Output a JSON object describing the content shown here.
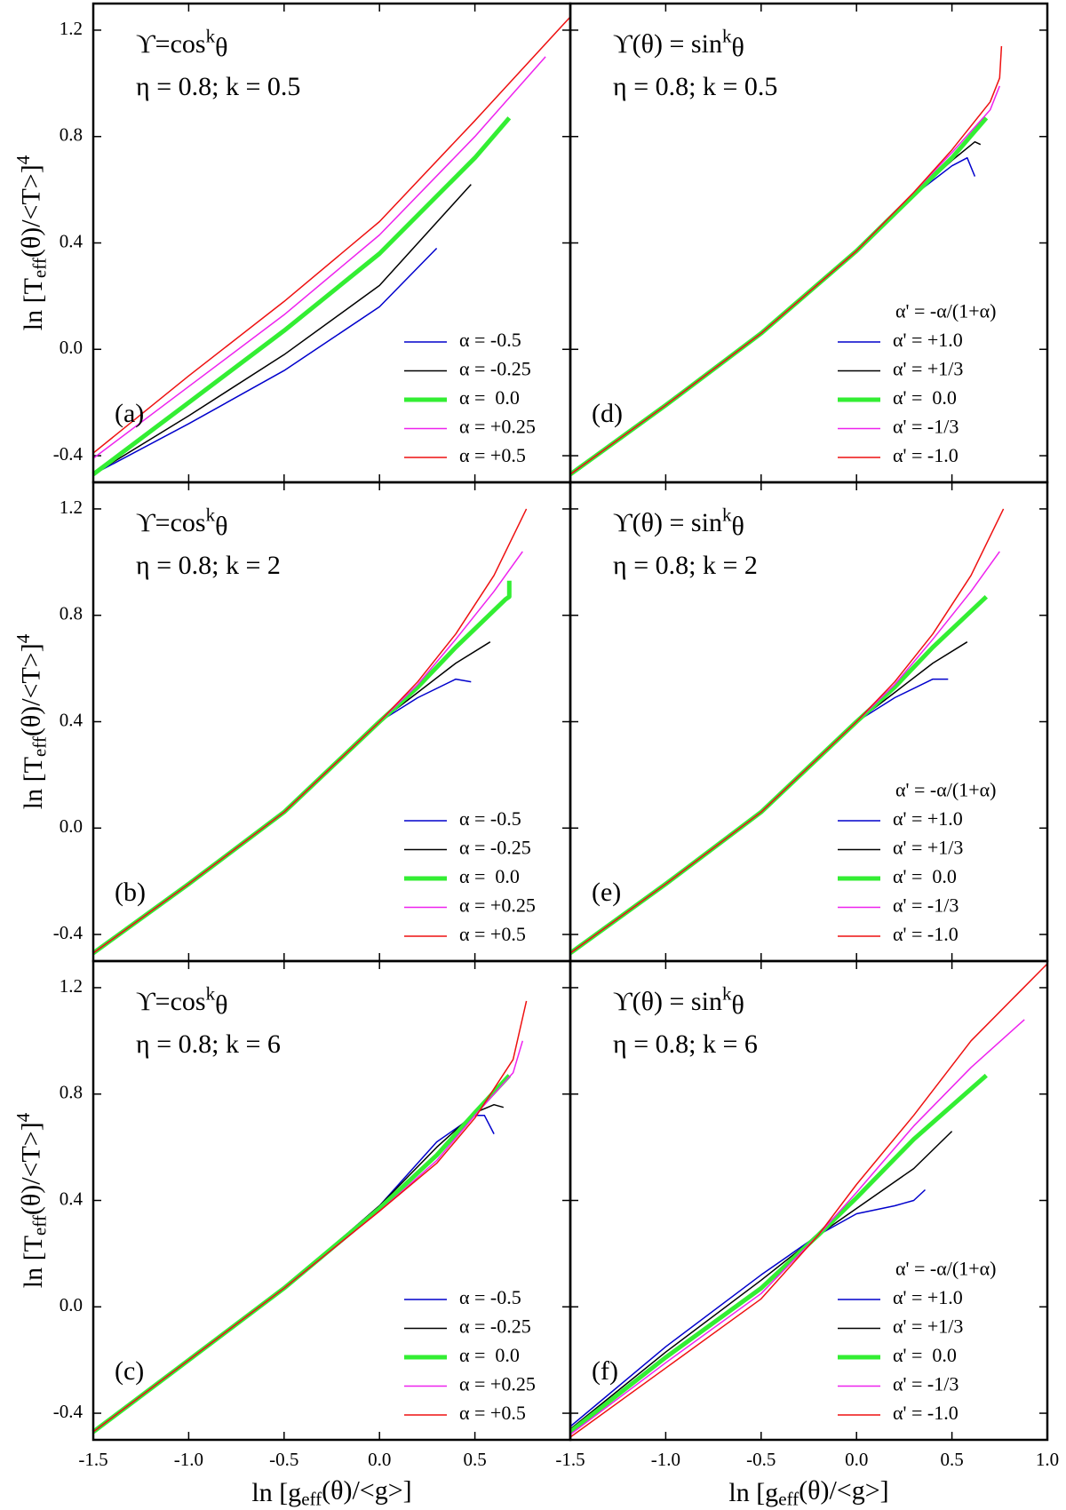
{
  "chart_data": [
    {
      "type": "line",
      "title": {
        "pre": "ϒ=cos",
        "sup": "k",
        "post": "θ"
      },
      "subtitle": "η = 0.8; k = 0.5",
      "annotation": "(a)",
      "ylabel": {
        "pre": "ln [T",
        "sub": "eff",
        "mid": "(θ)/<T>]",
        "sup": "4"
      },
      "xlim": [
        -1.5,
        1.0
      ],
      "ylim": [
        -0.5,
        1.3
      ],
      "xticks": [
        -1.5,
        -1,
        -0.5,
        0,
        0.5,
        1
      ],
      "yticks": [
        -0.4,
        {
          "value": 0,
          "label": "0.0"
        },
        0.4,
        0.8,
        1.2
      ],
      "series": [
        {
          "name": "α = -0.5",
          "color": "#0000cc",
          "linewidth": 1.5,
          "x": [
            -1.5,
            -1,
            -0.5,
            0,
            0.3
          ],
          "values": [
            -0.47,
            -0.28,
            -0.08,
            0.16,
            0.38
          ]
        },
        {
          "name": "α = -0.25",
          "color": "#000000",
          "linewidth": 1.5,
          "x": [
            -1.5,
            -1,
            -0.5,
            0,
            0.48
          ],
          "values": [
            -0.47,
            -0.25,
            -0.02,
            0.24,
            0.62
          ]
        },
        {
          "name": "α =  0.0",
          "color": "#33ee33",
          "linewidth": 5,
          "x": [
            -1.5,
            -1,
            -0.5,
            0,
            0.5,
            0.68
          ],
          "values": [
            -0.47,
            -0.2,
            0.07,
            0.36,
            0.72,
            0.87
          ]
        },
        {
          "name": "α = +0.25",
          "color": "#ee22ee",
          "linewidth": 1.5,
          "x": [
            -1.5,
            -1,
            -0.5,
            0,
            0.5,
            0.87
          ],
          "values": [
            -0.41,
            -0.14,
            0.13,
            0.43,
            0.8,
            1.1
          ]
        },
        {
          "name": "α = +0.5",
          "color": "#ee1111",
          "linewidth": 1.5,
          "x": [
            -1.5,
            -1,
            -0.5,
            0,
            0.5,
            1.0
          ],
          "values": [
            -0.39,
            -0.1,
            0.18,
            0.48,
            0.86,
            1.25
          ]
        }
      ]
    },
    {
      "type": "line",
      "title": {
        "pre": "ϒ(θ) = sin",
        "sup": "k",
        "post": "θ"
      },
      "subtitle": "η = 0.8; k = 0.5",
      "annotation": "(d)",
      "legend_title": "α' = -α/(1+α)",
      "xlim": [
        -1.5,
        1.0
      ],
      "ylim": [
        -0.5,
        1.3
      ],
      "xticks": [
        -1.5,
        -1,
        -0.5,
        0,
        0.5,
        1
      ],
      "yticks": [
        -0.4,
        0,
        0.4,
        0.8,
        1.2
      ],
      "series": [
        {
          "name": "α' = +1.0",
          "color": "#0000cc",
          "linewidth": 1.5,
          "x": [
            -1.5,
            -1,
            -0.5,
            0,
            0.3,
            0.5,
            0.58,
            0.62
          ],
          "values": [
            -0.47,
            -0.21,
            0.06,
            0.37,
            0.58,
            0.69,
            0.72,
            0.65
          ]
        },
        {
          "name": "α' = +1/3",
          "color": "#000000",
          "linewidth": 1.5,
          "x": [
            -1.5,
            -1,
            -0.5,
            0,
            0.3,
            0.5,
            0.62,
            0.65
          ],
          "values": [
            -0.47,
            -0.21,
            0.06,
            0.37,
            0.58,
            0.71,
            0.78,
            0.77
          ]
        },
        {
          "name": "α' =  0.0",
          "color": "#33ee33",
          "linewidth": 5,
          "x": [
            -1.5,
            -1,
            -0.5,
            0,
            0.3,
            0.5,
            0.68
          ],
          "values": [
            -0.47,
            -0.21,
            0.06,
            0.37,
            0.58,
            0.72,
            0.87
          ]
        },
        {
          "name": "α' = -1/3",
          "color": "#ee22ee",
          "linewidth": 1.5,
          "x": [
            -1.5,
            -1,
            -0.5,
            0,
            0.3,
            0.5,
            0.7,
            0.75
          ],
          "values": [
            -0.47,
            -0.21,
            0.06,
            0.37,
            0.59,
            0.74,
            0.9,
            0.99
          ]
        },
        {
          "name": "α' = -1.0",
          "color": "#ee1111",
          "linewidth": 1.5,
          "x": [
            -1.5,
            -1,
            -0.5,
            0,
            0.3,
            0.5,
            0.7,
            0.75,
            0.76
          ],
          "values": [
            -0.47,
            -0.21,
            0.06,
            0.37,
            0.59,
            0.75,
            0.93,
            1.02,
            1.14
          ]
        }
      ]
    },
    {
      "type": "line",
      "title": {
        "pre": "ϒ=cos",
        "sup": "k",
        "post": "θ"
      },
      "subtitle": "η = 0.8; k = 2",
      "annotation": "(b)",
      "ylabel": {
        "pre": "ln [T",
        "sub": "eff",
        "mid": "(θ)/<T>]",
        "sup": "4"
      },
      "xlim": [
        -1.5,
        1.0
      ],
      "ylim": [
        -0.5,
        1.3
      ],
      "xticks": [
        -1.5,
        -1,
        -0.5,
        0,
        0.5,
        1
      ],
      "yticks": [
        -0.4,
        {
          "value": 0,
          "label": "0.0"
        },
        0.4,
        0.8,
        1.2
      ],
      "series": [
        {
          "name": "α = -0.5",
          "color": "#0000cc",
          "linewidth": 1.5,
          "x": [
            -1.5,
            -1,
            -0.5,
            0,
            0.2,
            0.4,
            0.48
          ],
          "values": [
            -0.47,
            -0.21,
            0.06,
            0.4,
            0.49,
            0.56,
            0.55
          ]
        },
        {
          "name": "α = -0.25",
          "color": "#000000",
          "linewidth": 1.5,
          "x": [
            -1.5,
            -1,
            -0.5,
            0,
            0.2,
            0.4,
            0.58
          ],
          "values": [
            -0.47,
            -0.21,
            0.06,
            0.4,
            0.51,
            0.62,
            0.7
          ]
        },
        {
          "name": "α =  0.0",
          "color": "#33ee33",
          "linewidth": 5,
          "x": [
            -1.5,
            -1,
            -0.5,
            0,
            0.2,
            0.4,
            0.66,
            0.68,
            0.68
          ],
          "values": [
            -0.47,
            -0.21,
            0.06,
            0.4,
            0.53,
            0.68,
            0.86,
            0.87,
            0.93
          ]
        },
        {
          "name": "α = +0.25",
          "color": "#ee22ee",
          "linewidth": 1.5,
          "x": [
            -1.5,
            -1,
            -0.5,
            0,
            0.2,
            0.4,
            0.6,
            0.75
          ],
          "values": [
            -0.47,
            -0.21,
            0.06,
            0.4,
            0.54,
            0.71,
            0.89,
            1.04
          ]
        },
        {
          "name": "α = +0.5",
          "color": "#ee1111",
          "linewidth": 1.5,
          "x": [
            -1.5,
            -1,
            -0.5,
            0,
            0.2,
            0.4,
            0.6,
            0.77
          ],
          "values": [
            -0.47,
            -0.21,
            0.06,
            0.4,
            0.55,
            0.73,
            0.95,
            1.2
          ]
        }
      ]
    },
    {
      "type": "line",
      "title": {
        "pre": "ϒ(θ) = sin",
        "sup": "k",
        "post": "θ"
      },
      "subtitle": "η = 0.8; k = 2",
      "annotation": "(e)",
      "legend_title": "α' = -α/(1+α)",
      "xlim": [
        -1.5,
        1.0
      ],
      "ylim": [
        -0.5,
        1.3
      ],
      "xticks": [
        -1.5,
        -1,
        -0.5,
        0,
        0.5,
        1
      ],
      "yticks": [
        -0.4,
        0,
        0.4,
        0.8,
        1.2
      ],
      "series": [
        {
          "name": "α' = +1.0",
          "color": "#0000cc",
          "linewidth": 1.5,
          "x": [
            -1.5,
            -1,
            -0.5,
            0,
            0.2,
            0.4,
            0.48
          ],
          "values": [
            -0.47,
            -0.21,
            0.06,
            0.4,
            0.49,
            0.56,
            0.56
          ]
        },
        {
          "name": "α' = +1/3",
          "color": "#000000",
          "linewidth": 1.5,
          "x": [
            -1.5,
            -1,
            -0.5,
            0,
            0.2,
            0.4,
            0.58
          ],
          "values": [
            -0.47,
            -0.21,
            0.06,
            0.4,
            0.51,
            0.62,
            0.7
          ]
        },
        {
          "name": "α' =  0.0",
          "color": "#33ee33",
          "linewidth": 5,
          "x": [
            -1.5,
            -1,
            -0.5,
            0,
            0.2,
            0.4,
            0.68
          ],
          "values": [
            -0.47,
            -0.21,
            0.06,
            0.4,
            0.53,
            0.68,
            0.87
          ]
        },
        {
          "name": "α' = -1/3",
          "color": "#ee22ee",
          "linewidth": 1.5,
          "x": [
            -1.5,
            -1,
            -0.5,
            0,
            0.2,
            0.4,
            0.6,
            0.75
          ],
          "values": [
            -0.47,
            -0.21,
            0.06,
            0.4,
            0.54,
            0.71,
            0.89,
            1.04
          ]
        },
        {
          "name": "α' = -1.0",
          "color": "#ee1111",
          "linewidth": 1.5,
          "x": [
            -1.5,
            -1,
            -0.5,
            0,
            0.2,
            0.4,
            0.6,
            0.77
          ],
          "values": [
            -0.47,
            -0.21,
            0.06,
            0.4,
            0.55,
            0.73,
            0.95,
            1.2
          ]
        }
      ]
    },
    {
      "type": "line",
      "title": {
        "pre": "ϒ=cos",
        "sup": "k",
        "post": "θ"
      },
      "subtitle": "η = 0.8; k = 6",
      "annotation": "(c)",
      "ylabel": {
        "pre": "ln [T",
        "sub": "eff",
        "mid": "(θ)/<T>]",
        "sup": "4"
      },
      "xlabel": {
        "pre": "ln [g",
        "sub": "eff",
        "mid": "(θ)/<g>]"
      },
      "xlim": [
        -1.5,
        1.0
      ],
      "ylim": [
        -0.5,
        1.3
      ],
      "xticks": [
        -1.5,
        {
          "value": -1,
          "label": "-1.0"
        },
        -0.5,
        {
          "value": 0,
          "label": "0.0"
        },
        0.5
      ],
      "yticks": [
        -0.4,
        {
          "value": 0,
          "label": "0.0"
        },
        0.4,
        0.8,
        1.2
      ],
      "series": [
        {
          "name": "α = -0.5",
          "color": "#0000cc",
          "linewidth": 1.5,
          "x": [
            -1.5,
            -1,
            -0.5,
            0,
            0.3,
            0.5,
            0.55,
            0.6
          ],
          "values": [
            -0.47,
            -0.2,
            0.07,
            0.38,
            0.62,
            0.72,
            0.72,
            0.65
          ]
        },
        {
          "name": "α = -0.25",
          "color": "#000000",
          "linewidth": 1.5,
          "x": [
            -1.5,
            -1,
            -0.5,
            0,
            0.3,
            0.5,
            0.6,
            0.65
          ],
          "values": [
            -0.47,
            -0.2,
            0.07,
            0.38,
            0.6,
            0.73,
            0.76,
            0.75
          ]
        },
        {
          "name": "α =  0.0",
          "color": "#33ee33",
          "linewidth": 5,
          "x": [
            -1.5,
            -1,
            -0.5,
            0,
            0.3,
            0.5,
            0.68
          ],
          "values": [
            -0.47,
            -0.2,
            0.07,
            0.37,
            0.57,
            0.73,
            0.87
          ]
        },
        {
          "name": "α = +0.25",
          "color": "#ee22ee",
          "linewidth": 1.5,
          "x": [
            -1.5,
            -1,
            -0.5,
            0,
            0.3,
            0.5,
            0.7,
            0.75
          ],
          "values": [
            -0.47,
            -0.2,
            0.07,
            0.36,
            0.55,
            0.72,
            0.88,
            1.0
          ]
        },
        {
          "name": "α = +0.5",
          "color": "#ee1111",
          "linewidth": 1.5,
          "x": [
            -1.5,
            -1,
            -0.5,
            0,
            0.3,
            0.5,
            0.7,
            0.77
          ],
          "values": [
            -0.47,
            -0.2,
            0.07,
            0.36,
            0.54,
            0.71,
            0.93,
            1.15
          ]
        }
      ]
    },
    {
      "type": "line",
      "title": {
        "pre": "ϒ(θ) = sin",
        "sup": "k",
        "post": "θ"
      },
      "subtitle": "η = 0.8; k = 6",
      "annotation": "(f)",
      "legend_title": "α' = -α/(1+α)",
      "xlabel": {
        "pre": "ln [g",
        "sub": "eff",
        "mid": "(θ)/<g>]"
      },
      "xlim": [
        -1.5,
        1.0
      ],
      "ylim": [
        -0.5,
        1.3
      ],
      "xticks": [
        -1.5,
        {
          "value": -1,
          "label": "-1.0"
        },
        -0.5,
        {
          "value": 0,
          "label": "0.0"
        },
        0.5,
        {
          "value": 1,
          "label": "1.0"
        }
      ],
      "yticks": [
        -0.4,
        0,
        0.4,
        0.8,
        1.2
      ],
      "series": [
        {
          "name": "α' = +1.0",
          "color": "#0000cc",
          "linewidth": 1.5,
          "x": [
            -1.5,
            -1,
            -0.5,
            -0.2,
            0,
            0.2,
            0.3,
            0.36
          ],
          "values": [
            -0.45,
            -0.15,
            0.12,
            0.27,
            0.35,
            0.38,
            0.4,
            0.44
          ]
        },
        {
          "name": "α' = +1/3",
          "color": "#000000",
          "linewidth": 1.5,
          "x": [
            -1.5,
            -1,
            -0.5,
            -0.2,
            0,
            0.3,
            0.5
          ],
          "values": [
            -0.46,
            -0.17,
            0.1,
            0.27,
            0.37,
            0.52,
            0.66
          ]
        },
        {
          "name": "α' =  0.0",
          "color": "#33ee33",
          "linewidth": 5,
          "x": [
            -1.5,
            -1,
            -0.5,
            -0.2,
            0,
            0.3,
            0.68
          ],
          "values": [
            -0.47,
            -0.19,
            0.07,
            0.27,
            0.41,
            0.63,
            0.87
          ]
        },
        {
          "name": "α' = -1/3",
          "color": "#ee22ee",
          "linewidth": 1.5,
          "x": [
            -1.5,
            -1,
            -0.5,
            -0.2,
            0,
            0.3,
            0.6,
            0.88
          ],
          "values": [
            -0.48,
            -0.21,
            0.05,
            0.27,
            0.43,
            0.68,
            0.9,
            1.08
          ]
        },
        {
          "name": "α' = -1.0",
          "color": "#ee1111",
          "linewidth": 1.5,
          "x": [
            -1.5,
            -1,
            -0.5,
            -0.2,
            0,
            0.3,
            0.6,
            1.0
          ],
          "values": [
            -0.49,
            -0.23,
            0.03,
            0.27,
            0.46,
            0.72,
            1.0,
            1.29
          ]
        }
      ]
    }
  ]
}
